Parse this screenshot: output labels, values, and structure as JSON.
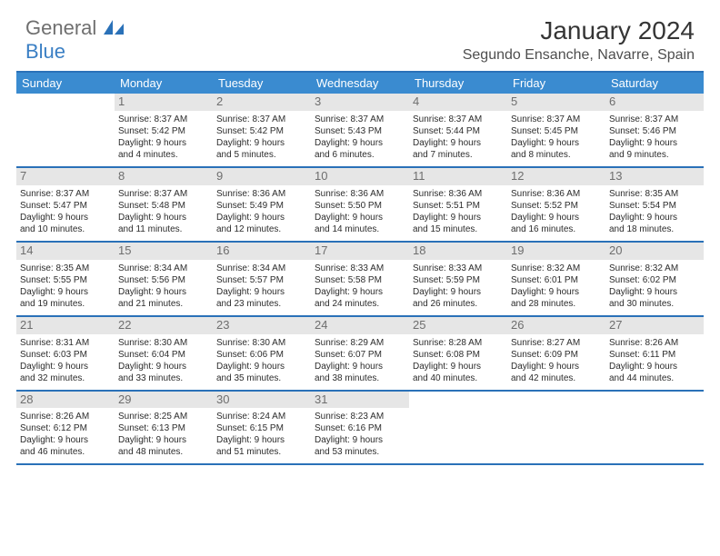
{
  "brand": {
    "part1": "General",
    "part2": "Blue"
  },
  "title": "January 2024",
  "location": "Segundo Ensanche, Navarre, Spain",
  "colors": {
    "header_bg": "#3a8bd0",
    "border": "#2a71b8",
    "daynum_bg": "#e6e6e6",
    "daynum_text": "#6e6e6e",
    "body_text": "#2c2c2c",
    "logo_gray": "#6f6f6f",
    "logo_blue": "#3a7fc4"
  },
  "day_names": [
    "Sunday",
    "Monday",
    "Tuesday",
    "Wednesday",
    "Thursday",
    "Friday",
    "Saturday"
  ],
  "weeks": [
    [
      {
        "blank": true
      },
      {
        "n": "1",
        "sr": "Sunrise: 8:37 AM",
        "ss": "Sunset: 5:42 PM",
        "d1": "Daylight: 9 hours",
        "d2": "and 4 minutes."
      },
      {
        "n": "2",
        "sr": "Sunrise: 8:37 AM",
        "ss": "Sunset: 5:42 PM",
        "d1": "Daylight: 9 hours",
        "d2": "and 5 minutes."
      },
      {
        "n": "3",
        "sr": "Sunrise: 8:37 AM",
        "ss": "Sunset: 5:43 PM",
        "d1": "Daylight: 9 hours",
        "d2": "and 6 minutes."
      },
      {
        "n": "4",
        "sr": "Sunrise: 8:37 AM",
        "ss": "Sunset: 5:44 PM",
        "d1": "Daylight: 9 hours",
        "d2": "and 7 minutes."
      },
      {
        "n": "5",
        "sr": "Sunrise: 8:37 AM",
        "ss": "Sunset: 5:45 PM",
        "d1": "Daylight: 9 hours",
        "d2": "and 8 minutes."
      },
      {
        "n": "6",
        "sr": "Sunrise: 8:37 AM",
        "ss": "Sunset: 5:46 PM",
        "d1": "Daylight: 9 hours",
        "d2": "and 9 minutes."
      }
    ],
    [
      {
        "n": "7",
        "sr": "Sunrise: 8:37 AM",
        "ss": "Sunset: 5:47 PM",
        "d1": "Daylight: 9 hours",
        "d2": "and 10 minutes."
      },
      {
        "n": "8",
        "sr": "Sunrise: 8:37 AM",
        "ss": "Sunset: 5:48 PM",
        "d1": "Daylight: 9 hours",
        "d2": "and 11 minutes."
      },
      {
        "n": "9",
        "sr": "Sunrise: 8:36 AM",
        "ss": "Sunset: 5:49 PM",
        "d1": "Daylight: 9 hours",
        "d2": "and 12 minutes."
      },
      {
        "n": "10",
        "sr": "Sunrise: 8:36 AM",
        "ss": "Sunset: 5:50 PM",
        "d1": "Daylight: 9 hours",
        "d2": "and 14 minutes."
      },
      {
        "n": "11",
        "sr": "Sunrise: 8:36 AM",
        "ss": "Sunset: 5:51 PM",
        "d1": "Daylight: 9 hours",
        "d2": "and 15 minutes."
      },
      {
        "n": "12",
        "sr": "Sunrise: 8:36 AM",
        "ss": "Sunset: 5:52 PM",
        "d1": "Daylight: 9 hours",
        "d2": "and 16 minutes."
      },
      {
        "n": "13",
        "sr": "Sunrise: 8:35 AM",
        "ss": "Sunset: 5:54 PM",
        "d1": "Daylight: 9 hours",
        "d2": "and 18 minutes."
      }
    ],
    [
      {
        "n": "14",
        "sr": "Sunrise: 8:35 AM",
        "ss": "Sunset: 5:55 PM",
        "d1": "Daylight: 9 hours",
        "d2": "and 19 minutes."
      },
      {
        "n": "15",
        "sr": "Sunrise: 8:34 AM",
        "ss": "Sunset: 5:56 PM",
        "d1": "Daylight: 9 hours",
        "d2": "and 21 minutes."
      },
      {
        "n": "16",
        "sr": "Sunrise: 8:34 AM",
        "ss": "Sunset: 5:57 PM",
        "d1": "Daylight: 9 hours",
        "d2": "and 23 minutes."
      },
      {
        "n": "17",
        "sr": "Sunrise: 8:33 AM",
        "ss": "Sunset: 5:58 PM",
        "d1": "Daylight: 9 hours",
        "d2": "and 24 minutes."
      },
      {
        "n": "18",
        "sr": "Sunrise: 8:33 AM",
        "ss": "Sunset: 5:59 PM",
        "d1": "Daylight: 9 hours",
        "d2": "and 26 minutes."
      },
      {
        "n": "19",
        "sr": "Sunrise: 8:32 AM",
        "ss": "Sunset: 6:01 PM",
        "d1": "Daylight: 9 hours",
        "d2": "and 28 minutes."
      },
      {
        "n": "20",
        "sr": "Sunrise: 8:32 AM",
        "ss": "Sunset: 6:02 PM",
        "d1": "Daylight: 9 hours",
        "d2": "and 30 minutes."
      }
    ],
    [
      {
        "n": "21",
        "sr": "Sunrise: 8:31 AM",
        "ss": "Sunset: 6:03 PM",
        "d1": "Daylight: 9 hours",
        "d2": "and 32 minutes."
      },
      {
        "n": "22",
        "sr": "Sunrise: 8:30 AM",
        "ss": "Sunset: 6:04 PM",
        "d1": "Daylight: 9 hours",
        "d2": "and 33 minutes."
      },
      {
        "n": "23",
        "sr": "Sunrise: 8:30 AM",
        "ss": "Sunset: 6:06 PM",
        "d1": "Daylight: 9 hours",
        "d2": "and 35 minutes."
      },
      {
        "n": "24",
        "sr": "Sunrise: 8:29 AM",
        "ss": "Sunset: 6:07 PM",
        "d1": "Daylight: 9 hours",
        "d2": "and 38 minutes."
      },
      {
        "n": "25",
        "sr": "Sunrise: 8:28 AM",
        "ss": "Sunset: 6:08 PM",
        "d1": "Daylight: 9 hours",
        "d2": "and 40 minutes."
      },
      {
        "n": "26",
        "sr": "Sunrise: 8:27 AM",
        "ss": "Sunset: 6:09 PM",
        "d1": "Daylight: 9 hours",
        "d2": "and 42 minutes."
      },
      {
        "n": "27",
        "sr": "Sunrise: 8:26 AM",
        "ss": "Sunset: 6:11 PM",
        "d1": "Daylight: 9 hours",
        "d2": "and 44 minutes."
      }
    ],
    [
      {
        "n": "28",
        "sr": "Sunrise: 8:26 AM",
        "ss": "Sunset: 6:12 PM",
        "d1": "Daylight: 9 hours",
        "d2": "and 46 minutes."
      },
      {
        "n": "29",
        "sr": "Sunrise: 8:25 AM",
        "ss": "Sunset: 6:13 PM",
        "d1": "Daylight: 9 hours",
        "d2": "and 48 minutes."
      },
      {
        "n": "30",
        "sr": "Sunrise: 8:24 AM",
        "ss": "Sunset: 6:15 PM",
        "d1": "Daylight: 9 hours",
        "d2": "and 51 minutes."
      },
      {
        "n": "31",
        "sr": "Sunrise: 8:23 AM",
        "ss": "Sunset: 6:16 PM",
        "d1": "Daylight: 9 hours",
        "d2": "and 53 minutes."
      },
      {
        "blank": true
      },
      {
        "blank": true
      },
      {
        "blank": true
      }
    ]
  ]
}
